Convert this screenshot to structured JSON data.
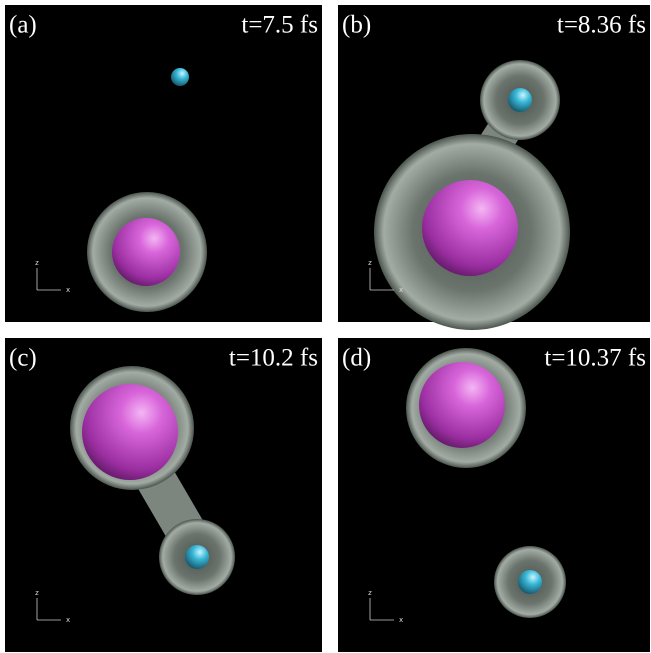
{
  "panels": [
    {
      "label": "(a)",
      "time": "t=7.5 fs",
      "axis_z": "z",
      "axis_x": "x"
    },
    {
      "label": "(b)",
      "time": "t=8.36 fs",
      "axis_z": "z",
      "axis_x": "x"
    },
    {
      "label": "(c)",
      "time": "t=10.2 fs",
      "axis_z": "z",
      "axis_x": "x"
    },
    {
      "label": "(d)",
      "time": "t=10.37 fs",
      "axis_z": "z",
      "axis_x": "x"
    }
  ]
}
